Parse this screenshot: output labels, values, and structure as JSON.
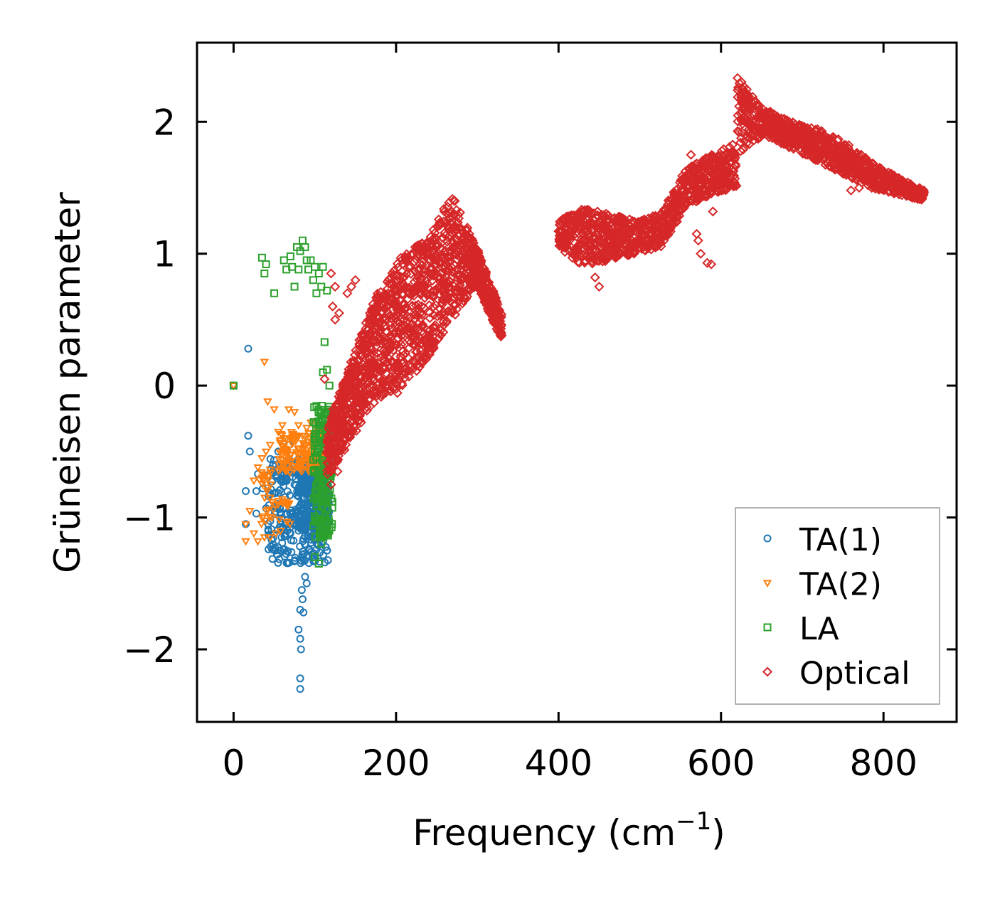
{
  "chart_data": {
    "type": "scatter",
    "title": "",
    "xlabel": "Frequency (cm",
    "xlabel_superscript": "−1",
    "xlabel_suffix": ")",
    "ylabel": "Grüneisen parameter",
    "xlim": [
      -45,
      890
    ],
    "ylim": [
      -2.55,
      2.6
    ],
    "xticks": [
      0,
      200,
      400,
      600,
      800
    ],
    "xtick_labels": [
      "0",
      "200",
      "400",
      "600",
      "800"
    ],
    "yticks": [
      -2,
      -1,
      0,
      1,
      2
    ],
    "ytick_labels": [
      "−2",
      "−1",
      "0",
      "1",
      "2"
    ],
    "grid": false,
    "legend_position": "lower-right",
    "series": [
      {
        "name": "TA(1)",
        "color": "#1f77b4",
        "marker": "circle",
        "points": [
          [
            0,
            0
          ],
          [
            18,
            0.28
          ],
          [
            18,
            -0.38
          ],
          [
            20,
            -0.5
          ],
          [
            15,
            -0.8
          ],
          [
            15,
            -1.05
          ],
          [
            28,
            -0.97
          ],
          [
            28,
            -0.8
          ],
          [
            30,
            -0.67
          ],
          [
            36,
            -0.78
          ],
          [
            40,
            -0.93
          ],
          [
            46,
            -0.63
          ],
          [
            52,
            -0.6
          ],
          [
            55,
            -0.5
          ],
          [
            60,
            -0.6
          ],
          [
            62,
            -0.68
          ],
          [
            68,
            -0.45
          ],
          [
            70,
            -1.12
          ],
          [
            75,
            -0.75
          ],
          [
            78,
            -1.05
          ],
          [
            80,
            -1.1
          ],
          [
            85,
            -1.3
          ],
          [
            88,
            -1.45
          ],
          [
            90,
            -1.5
          ],
          [
            84,
            -1.55
          ],
          [
            85,
            -1.62
          ],
          [
            82,
            -1.7
          ],
          [
            86,
            -1.72
          ],
          [
            80,
            -1.85
          ],
          [
            82,
            -1.92
          ],
          [
            83,
            -2.0
          ],
          [
            82,
            -2.22
          ],
          [
            82,
            -2.3
          ]
        ],
        "clusters": [
          {
            "x": [
              42,
              118
            ],
            "y": [
              -1.35,
              -0.55
            ],
            "n": 320
          },
          {
            "x": [
              80,
              118
            ],
            "y": [
              -1.1,
              -0.55
            ],
            "n": 260
          }
        ]
      },
      {
        "name": "TA(2)",
        "color": "#ff7f0e",
        "marker": "triangle-down",
        "points": [
          [
            0,
            0
          ],
          [
            38,
            0.18
          ],
          [
            42,
            -0.12
          ],
          [
            50,
            -0.18
          ],
          [
            68,
            -0.18
          ],
          [
            75,
            -0.2
          ],
          [
            60,
            -0.3
          ],
          [
            55,
            -0.35
          ],
          [
            65,
            -0.4
          ],
          [
            80,
            -0.3
          ],
          [
            85,
            -0.38
          ],
          [
            90,
            -0.32
          ],
          [
            95,
            -0.28
          ],
          [
            100,
            -0.3
          ],
          [
            105,
            -0.35
          ],
          [
            45,
            -0.45
          ],
          [
            40,
            -0.5
          ],
          [
            35,
            -0.55
          ],
          [
            30,
            -0.62
          ],
          [
            25,
            -0.72
          ],
          [
            20,
            -0.95
          ],
          [
            15,
            -1.05
          ],
          [
            15,
            -1.18
          ],
          [
            25,
            -1.12
          ],
          [
            30,
            -1.18
          ],
          [
            38,
            -1.15
          ],
          [
            45,
            -1.15
          ],
          [
            52,
            -1.12
          ],
          [
            58,
            -1.1
          ],
          [
            35,
            -0.7
          ],
          [
            45,
            -0.85
          ],
          [
            55,
            -0.9
          ]
        ],
        "clusters": [
          {
            "x": [
              55,
              115
            ],
            "y": [
              -0.65,
              -0.35
            ],
            "n": 160
          },
          {
            "x": [
              30,
              70
            ],
            "y": [
              -1.05,
              -0.6
            ],
            "n": 40
          }
        ]
      },
      {
        "name": "LA",
        "color": "#2ca02c",
        "marker": "square",
        "points": [
          [
            0,
            0
          ],
          [
            35,
            0.97
          ],
          [
            40,
            0.92
          ],
          [
            38,
            0.85
          ],
          [
            50,
            0.7
          ],
          [
            62,
            0.95
          ],
          [
            65,
            0.88
          ],
          [
            70,
            0.98
          ],
          [
            72,
            0.9
          ],
          [
            75,
            0.75
          ],
          [
            78,
            1.05
          ],
          [
            80,
            0.88
          ],
          [
            82,
            1.02
          ],
          [
            85,
            1.1
          ],
          [
            88,
            1.05
          ],
          [
            90,
            0.95
          ],
          [
            92,
            0.88
          ],
          [
            95,
            0.95
          ],
          [
            98,
            0.8
          ],
          [
            100,
            0.9
          ],
          [
            102,
            0.7
          ],
          [
            105,
            0.85
          ],
          [
            108,
            0.75
          ],
          [
            110,
            0.9
          ],
          [
            115,
            0.72
          ],
          [
            112,
            0.33
          ],
          [
            110,
            0.1
          ],
          [
            115,
            0.12
          ],
          [
            118,
            0.0
          ],
          [
            105,
            -0.3
          ],
          [
            108,
            -1.2
          ],
          [
            105,
            -1.35
          ],
          [
            100,
            -1.3
          ]
        ],
        "clusters": [
          {
            "x": [
              98,
              122
            ],
            "y": [
              -1.15,
              -0.15
            ],
            "n": 180
          }
        ]
      },
      {
        "name": "Optical",
        "color": "#d62728",
        "marker": "diamond",
        "points": [
          [
            120,
            0.85
          ],
          [
            125,
            0.75
          ],
          [
            122,
            0.6
          ],
          [
            130,
            0.55
          ],
          [
            125,
            0.5
          ],
          [
            140,
            0.7
          ],
          [
            145,
            0.75
          ],
          [
            150,
            0.8
          ],
          [
            112,
            0.05
          ],
          [
            118,
            -0.3
          ],
          [
            120,
            -0.75
          ],
          [
            122,
            -0.5
          ],
          [
            128,
            -0.65
          ],
          [
            450,
            0.75
          ],
          [
            445,
            0.82
          ],
          [
            563,
            1.75
          ],
          [
            565,
            1.65
          ],
          [
            570,
            1.55
          ],
          [
            570,
            1.15
          ],
          [
            572,
            1.1
          ],
          [
            575,
            1.0
          ],
          [
            583,
            0.93
          ],
          [
            588,
            0.92
          ],
          [
            590,
            1.32
          ],
          [
            600,
            1.55
          ],
          [
            540,
            1.3
          ],
          [
            530,
            1.25
          ],
          [
            565,
            1.4
          ],
          [
            800,
            1.55
          ],
          [
            810,
            1.52
          ],
          [
            760,
            1.48
          ],
          [
            770,
            1.5
          ]
        ],
        "bands": [
          {
            "x": [
              115,
              330
            ],
            "ylow": [
              -0.7,
              -0.4,
              -0.1,
              -0.05,
              0.2,
              0.5,
              0.75,
              0.35
            ],
            "yhigh": [
              -0.3,
              0.2,
              0.7,
              1.0,
              1.1,
              1.45,
              1.05,
              0.55
            ],
            "n": 1500
          },
          {
            "x": [
              400,
              620
            ],
            "ylow": [
              1.05,
              0.9,
              0.95,
              1.0,
              1.05,
              1.35,
              1.45,
              1.5
            ],
            "yhigh": [
              1.25,
              1.35,
              1.3,
              1.25,
              1.3,
              1.65,
              1.75,
              1.85
            ],
            "n": 900
          },
          {
            "x": [
              620,
              850
            ],
            "ylow": [
              1.75,
              1.9,
              1.8,
              1.7,
              1.6,
              1.5,
              1.45,
              1.4
            ],
            "yhigh": [
              2.35,
              2.1,
              2.0,
              1.95,
              1.85,
              1.7,
              1.58,
              1.48
            ],
            "n": 900
          }
        ]
      }
    ]
  }
}
